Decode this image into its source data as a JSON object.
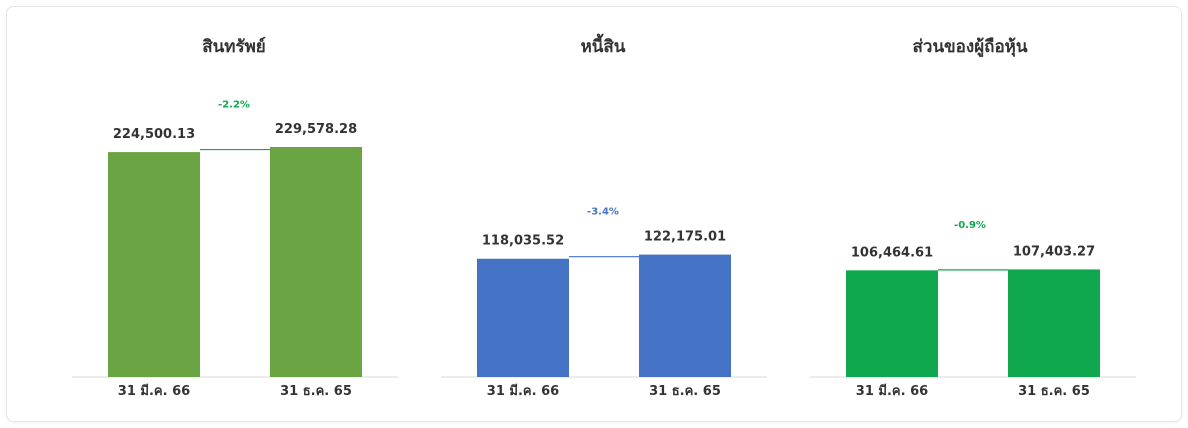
{
  "chart_data": [
    {
      "type": "bar",
      "title": "สินทรัพย์",
      "categories": [
        "31 มี.ค. 66",
        "31 ธ.ค. 65"
      ],
      "values": [
        224500.13,
        229578.28
      ],
      "value_labels": [
        "224,500.13",
        "229,578.28"
      ],
      "change_label": "-2.2%",
      "color": "#6aa443",
      "change_color": "#12a64f"
    },
    {
      "type": "bar",
      "title": "หนี้สิน",
      "categories": [
        "31 มี.ค. 66",
        "31 ธ.ค. 65"
      ],
      "values": [
        118035.52,
        122175.01
      ],
      "value_labels": [
        "118,035.52",
        "122,175.01"
      ],
      "change_label": "-3.4%",
      "color": "#4472c4",
      "change_color": "#4472c4"
    },
    {
      "type": "bar",
      "title": "ส่วนของผู้ถือหุ้น",
      "categories": [
        "31 มี.ค. 66",
        "31 ธ.ค. 65"
      ],
      "values": [
        106464.61,
        107403.27
      ],
      "value_labels": [
        "106,464.61",
        "107,403.27"
      ],
      "change_label": "-0.9%",
      "color": "#0fa84f",
      "change_color": "#12a64f"
    }
  ]
}
